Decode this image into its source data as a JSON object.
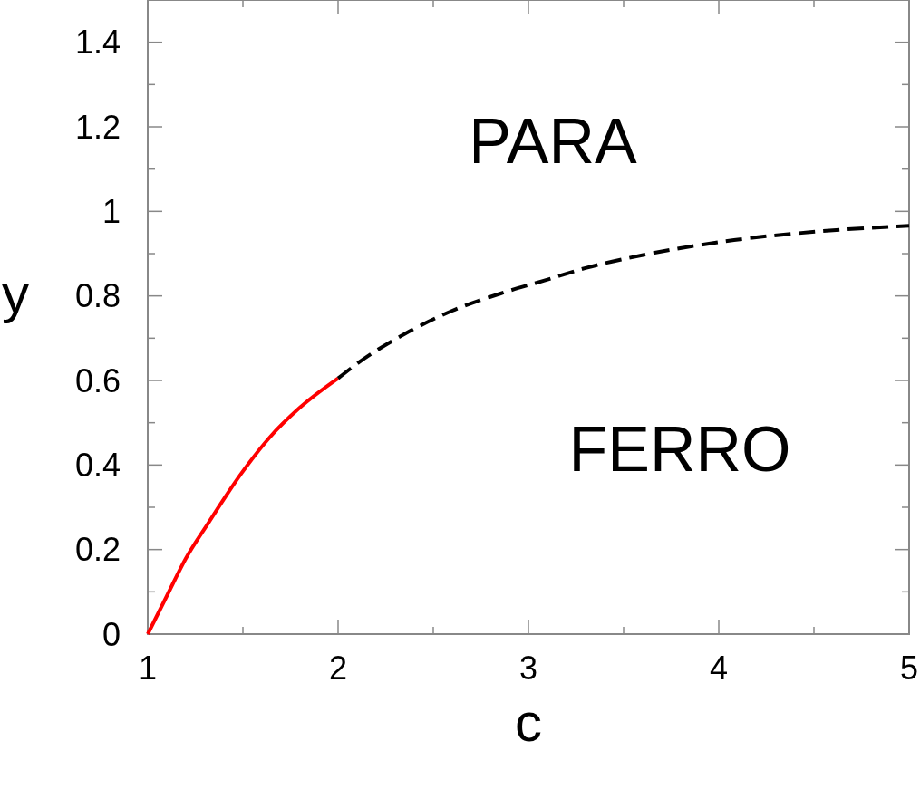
{
  "chart_data": {
    "type": "line",
    "xlabel": "c",
    "ylabel": "y",
    "xlim": [
      1,
      5
    ],
    "ylim": [
      0,
      1.5
    ],
    "xticks": [
      1,
      {
        "value": 1.5,
        "label": null
      },
      2,
      {
        "value": 2.5,
        "label": null
      },
      3,
      {
        "value": 3.5,
        "label": null
      },
      4,
      {
        "value": 4.5,
        "label": null
      },
      5
    ],
    "yticks": [
      0,
      {
        "value": 0.1,
        "label": null
      },
      0.2,
      {
        "value": 0.3,
        "label": null
      },
      0.4,
      {
        "value": 0.5,
        "label": null
      },
      0.6,
      {
        "value": 0.7,
        "label": null
      },
      0.8,
      {
        "value": 0.9,
        "label": null
      },
      1,
      {
        "value": 1.1,
        "label": null
      },
      1.2,
      {
        "value": 1.3,
        "label": null
      },
      1.4,
      {
        "value": 1.5,
        "label": null
      }
    ],
    "grid": false,
    "marker": "none",
    "series": [
      {
        "color": "#ff0000",
        "line_style": "solid",
        "x": [
          1,
          1.1,
          1.2,
          1.32,
          1.49,
          1.64,
          1.8,
          2
        ],
        "values": [
          0,
          0.09,
          0.179,
          0.264,
          0.379,
          0.465,
          0.536,
          0.605
        ]
      },
      {
        "color": "#000000",
        "line_style": "dashed",
        "x": [
          2,
          2.11,
          2.37,
          2.6,
          2.87,
          3.08,
          3.3,
          3.64,
          4.08,
          4.51,
          5
        ],
        "values": [
          0.605,
          0.643,
          0.715,
          0.765,
          0.808,
          0.836,
          0.866,
          0.9,
          0.932,
          0.952,
          0.966
        ]
      }
    ],
    "annotations": [
      "PARA",
      "FERRO"
    ]
  }
}
